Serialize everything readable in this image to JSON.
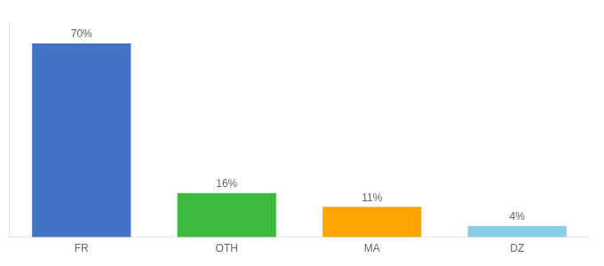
{
  "chart_data": {
    "type": "bar",
    "categories": [
      "FR",
      "OTH",
      "MA",
      "DZ"
    ],
    "values": [
      70,
      16,
      11,
      4
    ],
    "value_labels": [
      "70%",
      "16%",
      "11%",
      "4%"
    ],
    "colors": [
      "#4472C4",
      "#3CB940",
      "#FFA500",
      "#87CEEB"
    ],
    "ylim": [
      0,
      78
    ],
    "grid": false,
    "tick_labels": "x",
    "data_labels": true
  }
}
